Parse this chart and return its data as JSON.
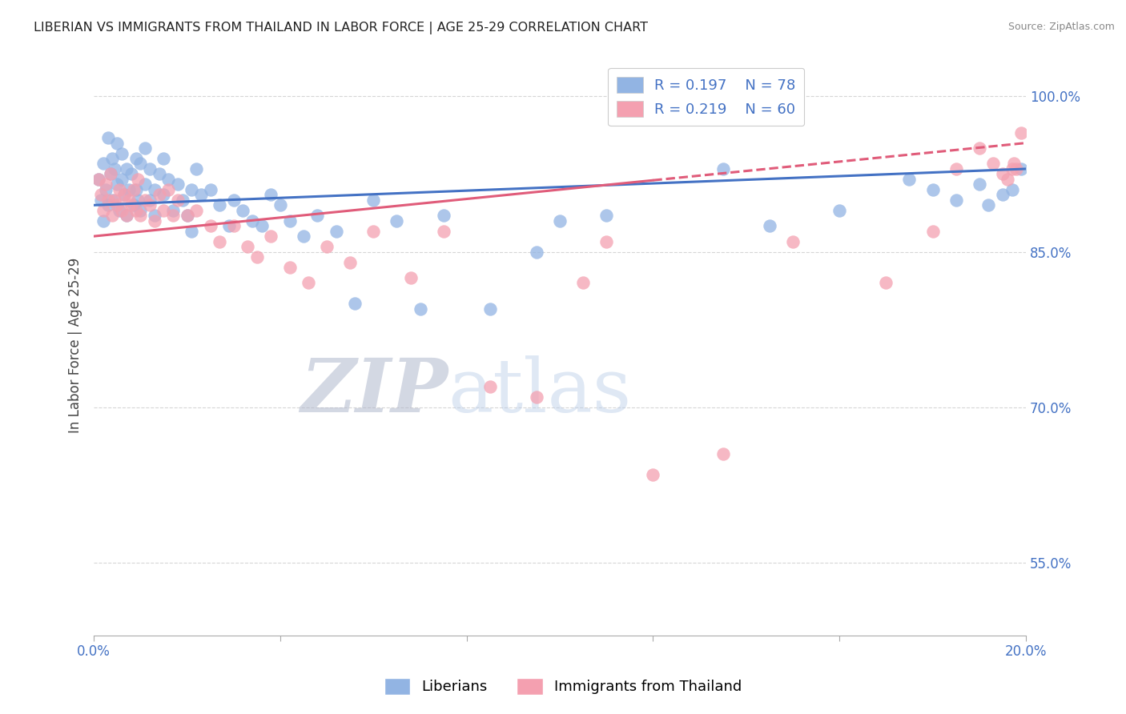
{
  "title": "LIBERIAN VS IMMIGRANTS FROM THAILAND IN LABOR FORCE | AGE 25-29 CORRELATION CHART",
  "source": "Source: ZipAtlas.com",
  "ylabel": "In Labor Force | Age 25-29",
  "yticks": [
    55.0,
    70.0,
    85.0,
    100.0
  ],
  "ytick_labels": [
    "55.0%",
    "70.0%",
    "85.0%",
    "100.0%"
  ],
  "xlim": [
    0.0,
    20.0
  ],
  "ylim": [
    48.0,
    104.0
  ],
  "legend_R1": "R = 0.197",
  "legend_N1": "N = 78",
  "legend_R2": "R = 0.219",
  "legend_N2": "N = 60",
  "color_blue": "#92b4e3",
  "color_pink": "#f4a0b0",
  "line_color_blue": "#4472c4",
  "line_color_pink": "#e05c7a",
  "axis_label_color": "#4472c4",
  "watermark_zip": "ZIP",
  "watermark_atlas": "atlas",
  "blue_scatter_x": [
    0.1,
    0.15,
    0.2,
    0.2,
    0.25,
    0.3,
    0.3,
    0.35,
    0.4,
    0.4,
    0.45,
    0.5,
    0.5,
    0.55,
    0.6,
    0.6,
    0.65,
    0.7,
    0.7,
    0.75,
    0.8,
    0.85,
    0.9,
    0.9,
    0.95,
    1.0,
    1.0,
    1.1,
    1.1,
    1.2,
    1.2,
    1.3,
    1.3,
    1.4,
    1.5,
    1.5,
    1.6,
    1.7,
    1.8,
    1.9,
    2.0,
    2.1,
    2.1,
    2.2,
    2.3,
    2.5,
    2.7,
    2.9,
    3.0,
    3.2,
    3.4,
    3.6,
    3.8,
    4.0,
    4.2,
    4.5,
    4.8,
    5.2,
    5.6,
    6.0,
    6.5,
    7.0,
    7.5,
    8.5,
    9.5,
    10.0,
    11.0,
    13.5,
    14.5,
    16.0,
    17.5,
    18.0,
    18.5,
    19.0,
    19.2,
    19.5,
    19.7,
    19.9
  ],
  "blue_scatter_y": [
    92.0,
    90.0,
    93.5,
    88.0,
    91.0,
    89.5,
    96.0,
    92.5,
    94.0,
    90.0,
    93.0,
    91.5,
    95.5,
    89.0,
    92.0,
    94.5,
    90.5,
    88.5,
    93.0,
    91.0,
    92.5,
    89.5,
    91.0,
    94.0,
    90.0,
    89.0,
    93.5,
    91.5,
    95.0,
    90.0,
    93.0,
    91.0,
    88.5,
    92.5,
    90.5,
    94.0,
    92.0,
    89.0,
    91.5,
    90.0,
    88.5,
    91.0,
    87.0,
    93.0,
    90.5,
    91.0,
    89.5,
    87.5,
    90.0,
    89.0,
    88.0,
    87.5,
    90.5,
    89.5,
    88.0,
    86.5,
    88.5,
    87.0,
    80.0,
    90.0,
    88.0,
    79.5,
    88.5,
    79.5,
    85.0,
    88.0,
    88.5,
    93.0,
    87.5,
    89.0,
    92.0,
    91.0,
    90.0,
    91.5,
    89.5,
    90.5,
    91.0,
    93.0
  ],
  "pink_scatter_x": [
    0.1,
    0.15,
    0.2,
    0.25,
    0.3,
    0.35,
    0.4,
    0.45,
    0.5,
    0.55,
    0.6,
    0.65,
    0.7,
    0.75,
    0.8,
    0.85,
    0.9,
    0.95,
    1.0,
    1.1,
    1.2,
    1.3,
    1.4,
    1.5,
    1.6,
    1.7,
    1.8,
    2.0,
    2.2,
    2.5,
    2.7,
    3.0,
    3.3,
    3.5,
    3.8,
    4.2,
    4.6,
    5.0,
    5.5,
    6.0,
    6.8,
    7.5,
    8.5,
    9.5,
    10.5,
    11.0,
    12.0,
    13.5,
    15.0,
    17.0,
    18.0,
    18.5,
    19.0,
    19.3,
    19.5,
    19.6,
    19.7,
    19.75,
    19.8,
    19.9
  ],
  "pink_scatter_y": [
    92.0,
    90.5,
    89.0,
    91.5,
    90.0,
    92.5,
    88.5,
    90.0,
    89.5,
    91.0,
    89.0,
    90.5,
    88.5,
    90.0,
    89.5,
    91.0,
    89.0,
    92.0,
    88.5,
    90.0,
    89.5,
    88.0,
    90.5,
    89.0,
    91.0,
    88.5,
    90.0,
    88.5,
    89.0,
    87.5,
    86.0,
    87.5,
    85.5,
    84.5,
    86.5,
    83.5,
    82.0,
    85.5,
    84.0,
    87.0,
    82.5,
    87.0,
    72.0,
    71.0,
    82.0,
    86.0,
    63.5,
    65.5,
    86.0,
    82.0,
    87.0,
    93.0,
    95.0,
    93.5,
    92.5,
    92.0,
    93.0,
    93.5,
    93.0,
    96.5
  ],
  "blue_line_x0": 0.0,
  "blue_line_x1": 20.0,
  "blue_line_y0": 89.5,
  "blue_line_y1": 93.0,
  "pink_line_x0": 0.0,
  "pink_line_x1": 20.0,
  "pink_line_y0": 86.5,
  "pink_line_y1": 95.5,
  "pink_solid_x1": 12.0,
  "pink_solid_y1": 90.5
}
